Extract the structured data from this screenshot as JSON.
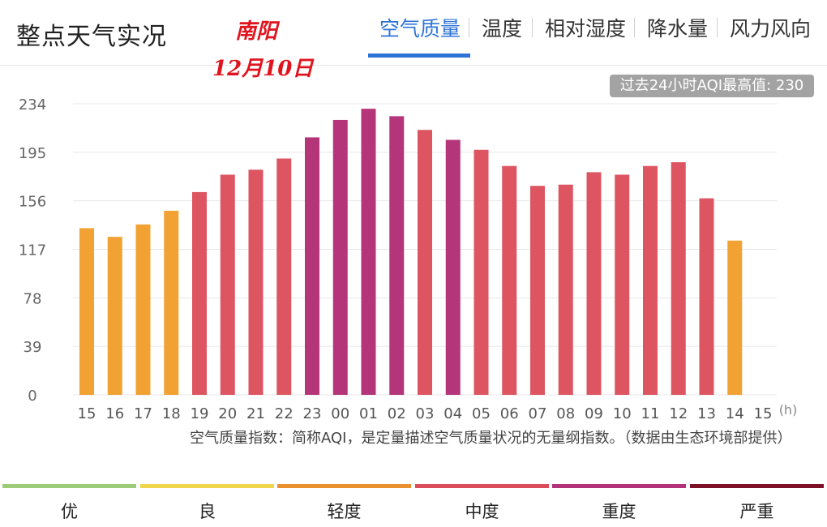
{
  "header": {
    "title": "整点天气实况",
    "stamp_city": "南阳",
    "stamp_date": "12月10日",
    "tabs": [
      {
        "label": "空气质量",
        "active": true
      },
      {
        "label": "温度",
        "active": false
      },
      {
        "label": "相对湿度",
        "active": false
      },
      {
        "label": "降水量",
        "active": false
      },
      {
        "label": "风力风向",
        "active": false
      }
    ]
  },
  "badge": {
    "text": "过去24小时AQI最高值: 230"
  },
  "colors": {
    "accent": "#2e74d6",
    "good": "#f2a233",
    "moderate": "#dd5561",
    "heavy": "#b5357a",
    "grid": "#e8e8e8",
    "axis_text": "#666666"
  },
  "chart_data": {
    "type": "bar",
    "title": "",
    "xlabel": "(h)",
    "ylabel": "",
    "ylim": [
      0,
      234
    ],
    "yticks": [
      0,
      39,
      78,
      117,
      156,
      195,
      234
    ],
    "categories": [
      "15",
      "16",
      "17",
      "18",
      "19",
      "20",
      "21",
      "22",
      "23",
      "00",
      "01",
      "02",
      "03",
      "04",
      "05",
      "06",
      "07",
      "08",
      "09",
      "10",
      "11",
      "12",
      "13",
      "14",
      "15"
    ],
    "values": [
      134,
      127,
      137,
      148,
      163,
      177,
      181,
      190,
      207,
      221,
      230,
      224,
      213,
      205,
      197,
      184,
      168,
      169,
      179,
      177,
      184,
      187,
      158,
      124,
      null
    ],
    "bar_colors": [
      "#f2a233",
      "#f2a233",
      "#f2a233",
      "#f2a233",
      "#dd5561",
      "#dd5561",
      "#dd5561",
      "#dd5561",
      "#b5357a",
      "#b5357a",
      "#b5357a",
      "#b5357a",
      "#dd5561",
      "#b5357a",
      "#dd5561",
      "#dd5561",
      "#dd5561",
      "#dd5561",
      "#dd5561",
      "#dd5561",
      "#dd5561",
      "#dd5561",
      "#dd5561",
      "#f2a233",
      null
    ],
    "grid": true,
    "legend": "bottom"
  },
  "footnote": "空气质量指数：简称AQI，是定量描述空气质量状况的无量纲指数。（数据由生态环境部提供）",
  "aqi_legend": [
    {
      "label": "优",
      "color": "#9ccb7a"
    },
    {
      "label": "良",
      "color": "#f0d54d"
    },
    {
      "label": "轻度",
      "color": "#e9912f"
    },
    {
      "label": "中度",
      "color": "#dc4d5c"
    },
    {
      "label": "重度",
      "color": "#b3327a"
    },
    {
      "label": "严重",
      "color": "#7d1128"
    }
  ]
}
